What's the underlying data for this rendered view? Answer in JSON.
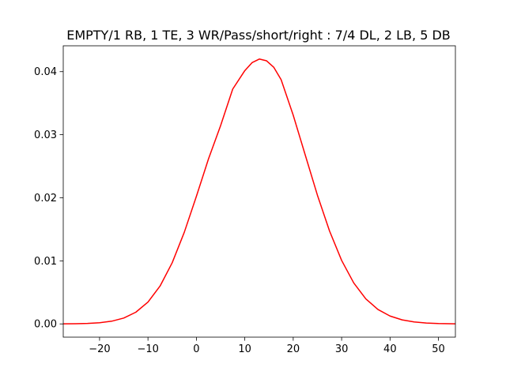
{
  "chart_data": {
    "type": "line",
    "title": "EMPTY/1 RB, 1 TE, 3 WR/Pass/short/right : 7/4 DL, 2 LB, 5 DB",
    "xlabel": "",
    "ylabel": "",
    "xlim": [
      -27.5,
      53.5
    ],
    "ylim": [
      -0.0021,
      0.0441
    ],
    "x_ticks": [
      -20,
      -10,
      0,
      10,
      20,
      30,
      40,
      50
    ],
    "x_tick_labels": [
      "−20",
      "−10",
      "0",
      "10",
      "20",
      "30",
      "40",
      "50"
    ],
    "y_ticks": [
      0.0,
      0.01,
      0.02,
      0.03,
      0.04
    ],
    "y_tick_labels": [
      "0.00",
      "0.01",
      "0.02",
      "0.03",
      "0.04"
    ],
    "grid": false,
    "legend": "none",
    "series": [
      {
        "color": "#ff0000",
        "x": [
          -27.5,
          -25,
          -22.5,
          -20,
          -17.5,
          -15,
          -12.5,
          -10,
          -7.5,
          -5,
          -2.5,
          0,
          2.5,
          5,
          7.5,
          10,
          11.5,
          13,
          14.5,
          16,
          17.5,
          20,
          22.5,
          25,
          27.5,
          30,
          32.5,
          35,
          37.5,
          40,
          42.5,
          45,
          47.5,
          50,
          53.5
        ],
        "y": [
          1e-05,
          3e-05,
          8e-05,
          0.00019,
          0.00043,
          0.00093,
          0.00186,
          0.00346,
          0.00601,
          0.00969,
          0.01453,
          0.02023,
          0.02617,
          0.03144,
          0.03723,
          0.04016,
          0.04143,
          0.042,
          0.04172,
          0.04068,
          0.03873,
          0.0331,
          0.02674,
          0.02041,
          0.01474,
          0.01007,
          0.0065,
          0.00397,
          0.00229,
          0.00125,
          0.00064,
          0.00031,
          0.00014,
          6e-05,
          2e-05
        ]
      }
    ]
  }
}
